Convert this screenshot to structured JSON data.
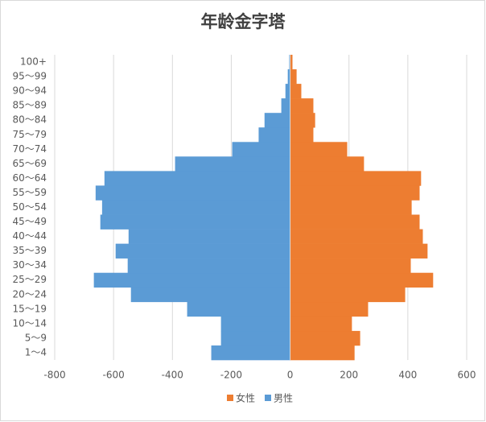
{
  "chart_data": {
    "type": "bar",
    "orientation": "horizontal",
    "stacked": false,
    "title": "年龄金字塔",
    "categories": [
      "1～4",
      "5～9",
      "10～14",
      "15～19",
      "20～24",
      "25～29",
      "30～34",
      "35～39",
      "40～44",
      "45～49",
      "50～54",
      "55～59",
      "60～64",
      "65～69",
      "70～74",
      "75～79",
      "80～84",
      "85～89",
      "90～94",
      "95～99",
      "100+"
    ],
    "series": [
      {
        "name": "女性",
        "color": "#ED7D31",
        "values": [
          219,
          238,
          210,
          265,
          391,
          486,
          410,
          467,
          451,
          440,
          413,
          440,
          445,
          251,
          194,
          79,
          85,
          79,
          38,
          22,
          8
        ]
      },
      {
        "name": "男性",
        "color": "#5B9BD5",
        "values": [
          -268,
          -235,
          -235,
          -350,
          -541,
          -667,
          -552,
          -593,
          -549,
          -645,
          -639,
          -661,
          -631,
          -391,
          -197,
          -107,
          -87,
          -30,
          -16,
          -8,
          -3
        ]
      }
    ],
    "xlim": [
      -800,
      600
    ],
    "xticks": [
      -800,
      -600,
      -400,
      -200,
      0,
      200,
      400,
      600
    ],
    "grid": true,
    "legend": "bottom"
  }
}
